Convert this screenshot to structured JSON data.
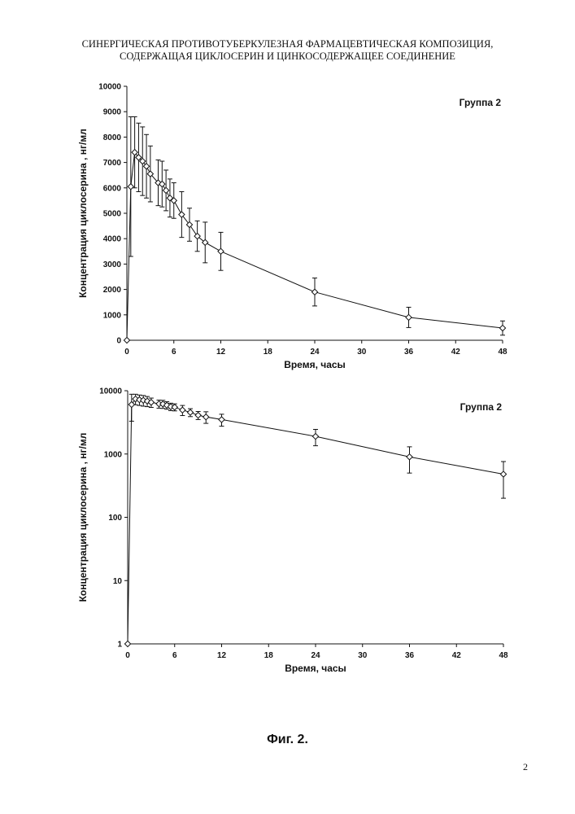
{
  "header": {
    "line1": "СИНЕРГИЧЕСКАЯ ПРОТИВОТУБЕРКУЛЕЗНАЯ ФАРМАЦЕВТИЧЕСКАЯ КОМПОЗИЦИЯ,",
    "line2": "СОДЕРЖАЩАЯ ЦИКЛОСЕРИН И ЦИНКОСОДЕРЖАЩЕЕ СОЕДИНЕНИЕ"
  },
  "figure_caption": "Фиг. 2.",
  "page_number": "2",
  "chart_data": [
    {
      "type": "line",
      "scale": "linear",
      "annotation": "Группа 2",
      "xlabel": "Время, часы",
      "ylabel": "Концентрация циклосерина , нг/мл",
      "xlim": [
        0,
        48
      ],
      "ylim": [
        0,
        10000
      ],
      "xticks": [
        "0",
        "6",
        "12",
        "18",
        "24",
        "30",
        "36",
        "42",
        "48"
      ],
      "yticks": [
        "0",
        "1000",
        "2000",
        "3000",
        "4000",
        "5000",
        "6000",
        "7000",
        "8000",
        "9000",
        "10000"
      ],
      "marker": "diamond",
      "grid": false,
      "x": [
        0,
        0.5,
        1,
        1.5,
        2,
        2.5,
        3,
        4,
        4.5,
        5,
        5.5,
        6,
        7,
        8,
        9,
        10,
        12,
        24,
        36,
        48
      ],
      "y": [
        0,
        6050,
        7400,
        7200,
        7050,
        6850,
        6550,
        6200,
        6150,
        5900,
        5600,
        5500,
        4950,
        4550,
        4100,
        3850,
        3500,
        1900,
        900,
        480
      ],
      "error": [
        0,
        2750,
        1400,
        1350,
        1350,
        1250,
        1100,
        900,
        900,
        800,
        750,
        700,
        900,
        650,
        600,
        800,
        750,
        550,
        400,
        280
      ]
    },
    {
      "type": "line",
      "scale": "log",
      "annotation": "Группа 2",
      "xlabel": "Время, часы",
      "ylabel": "Концентрация циклосерина , нг/мл",
      "xlim": [
        0,
        48
      ],
      "ylim": [
        1,
        10000
      ],
      "xticks": [
        "0",
        "6",
        "12",
        "18",
        "24",
        "30",
        "36",
        "42",
        "48"
      ],
      "yticks": [
        "1",
        "10",
        "100",
        "1000",
        "10000"
      ],
      "marker": "diamond",
      "grid": false,
      "x": [
        0,
        0.5,
        1,
        1.5,
        2,
        2.5,
        3,
        4,
        4.5,
        5,
        5.5,
        6,
        7,
        8,
        9,
        10,
        12,
        24,
        36,
        48
      ],
      "y": [
        1,
        6050,
        7400,
        7200,
        7050,
        6850,
        6550,
        6200,
        6150,
        5900,
        5600,
        5500,
        4950,
        4550,
        4100,
        3850,
        3500,
        1900,
        900,
        480
      ],
      "error": [
        0,
        2750,
        1400,
        1350,
        1350,
        1250,
        1100,
        900,
        900,
        800,
        750,
        700,
        900,
        650,
        600,
        800,
        750,
        550,
        400,
        280
      ]
    }
  ]
}
